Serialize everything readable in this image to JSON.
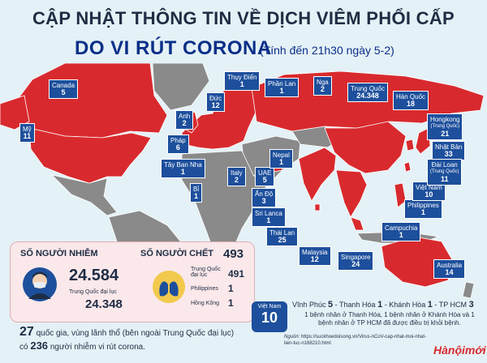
{
  "title": "CẬP NHẬT THÔNG TIN VỀ DỊCH VIÊM PHỔI CẤP",
  "subtitle": "DO VI RÚT CORONA",
  "as_of": "(Tính đến 21h30 ngày 5-2)",
  "countries": [
    {
      "name": "Canada",
      "count": "5"
    },
    {
      "name": "Mỹ",
      "count": "11"
    },
    {
      "name": "Thụy Điển",
      "count": "1"
    },
    {
      "name": "Phần Lan",
      "count": "1"
    },
    {
      "name": "Nga",
      "count": "2"
    },
    {
      "name": "Đức",
      "count": "12"
    },
    {
      "name": "Anh",
      "count": "2"
    },
    {
      "name": "Pháp",
      "count": "6"
    },
    {
      "name": "Tây Ban Nha",
      "count": "1"
    },
    {
      "name": "Italy",
      "count": "2"
    },
    {
      "name": "Bỉ",
      "count": "1"
    },
    {
      "name": "UAE",
      "count": "5"
    },
    {
      "name": "Nepal",
      "count": "1"
    },
    {
      "name": "Ấn Độ",
      "count": "3"
    },
    {
      "name": "Sri Lanca",
      "count": "1"
    },
    {
      "name": "Thái Lan",
      "count": "25"
    },
    {
      "name": "Malaysia",
      "count": "12"
    },
    {
      "name": "Singapore",
      "count": "24"
    },
    {
      "name": "Campuchia",
      "count": "1"
    },
    {
      "name": "Philippines",
      "count": "1"
    },
    {
      "name": "Việt Nam",
      "count": "10"
    },
    {
      "name": "Trung Quốc",
      "count": "24.348"
    },
    {
      "name": "Hàn Quốc",
      "count": "18"
    },
    {
      "name": "Hongkong",
      "note": "(Trung Quốc)",
      "count": "21"
    },
    {
      "name": "Nhật Bản",
      "count": "33"
    },
    {
      "name": "Đài Loan",
      "note": "(Trung Quốc)",
      "count": "11"
    },
    {
      "name": "Australia",
      "count": "14"
    }
  ],
  "infected": {
    "label": "SỐ NGƯỜI NHIỄM",
    "total": "24.584",
    "china_label": "Trung Quốc đại lục",
    "china_count": "24.348"
  },
  "deaths": {
    "label": "SỐ NGƯỜI CHẾT",
    "total": "493",
    "rows": [
      {
        "label": "Trung Quốc đại lục",
        "count": "491"
      },
      {
        "label": "Philippines",
        "count": "1"
      },
      {
        "label": "Hồng Kông",
        "count": "1"
      }
    ]
  },
  "summary": {
    "count1": "27",
    "text1": "quốc gia, vùng lãnh thổ (bên ngoài Trung Quốc đại lục)",
    "prefix2": "có",
    "count2": "236",
    "text2": "người nhiễm vi rút corona."
  },
  "vietnam": {
    "label": "Việt Nam",
    "count": "10",
    "breakdown": [
      {
        "place": "Vĩnh Phúc",
        "count": "5"
      },
      {
        "place": "Thanh Hóa",
        "count": "1"
      },
      {
        "place": "Khánh Hòa",
        "count": "1"
      },
      {
        "place": "TP HCM",
        "count": "3"
      }
    ],
    "note": "1 bệnh nhân ở Thanh Hóa, 1 bệnh nhân ở Khánh Hòa và 1 bệnh nhân ở TP HCM đã được điều trị khỏi bệnh."
  },
  "source_label": "Nguồn:",
  "source": "https://suckhoedoisong.vn/Virus-nCoV-cap-nhat-moi-nhat-lien-tuc-n168210.html",
  "brand": "Hànộimới",
  "colors": {
    "affected": "#d82a2e",
    "unaffected": "#8a8a8a",
    "ocean": "#e4f1f6",
    "label_bg": "#1d4f9c",
    "heading": "#0a2f88"
  }
}
